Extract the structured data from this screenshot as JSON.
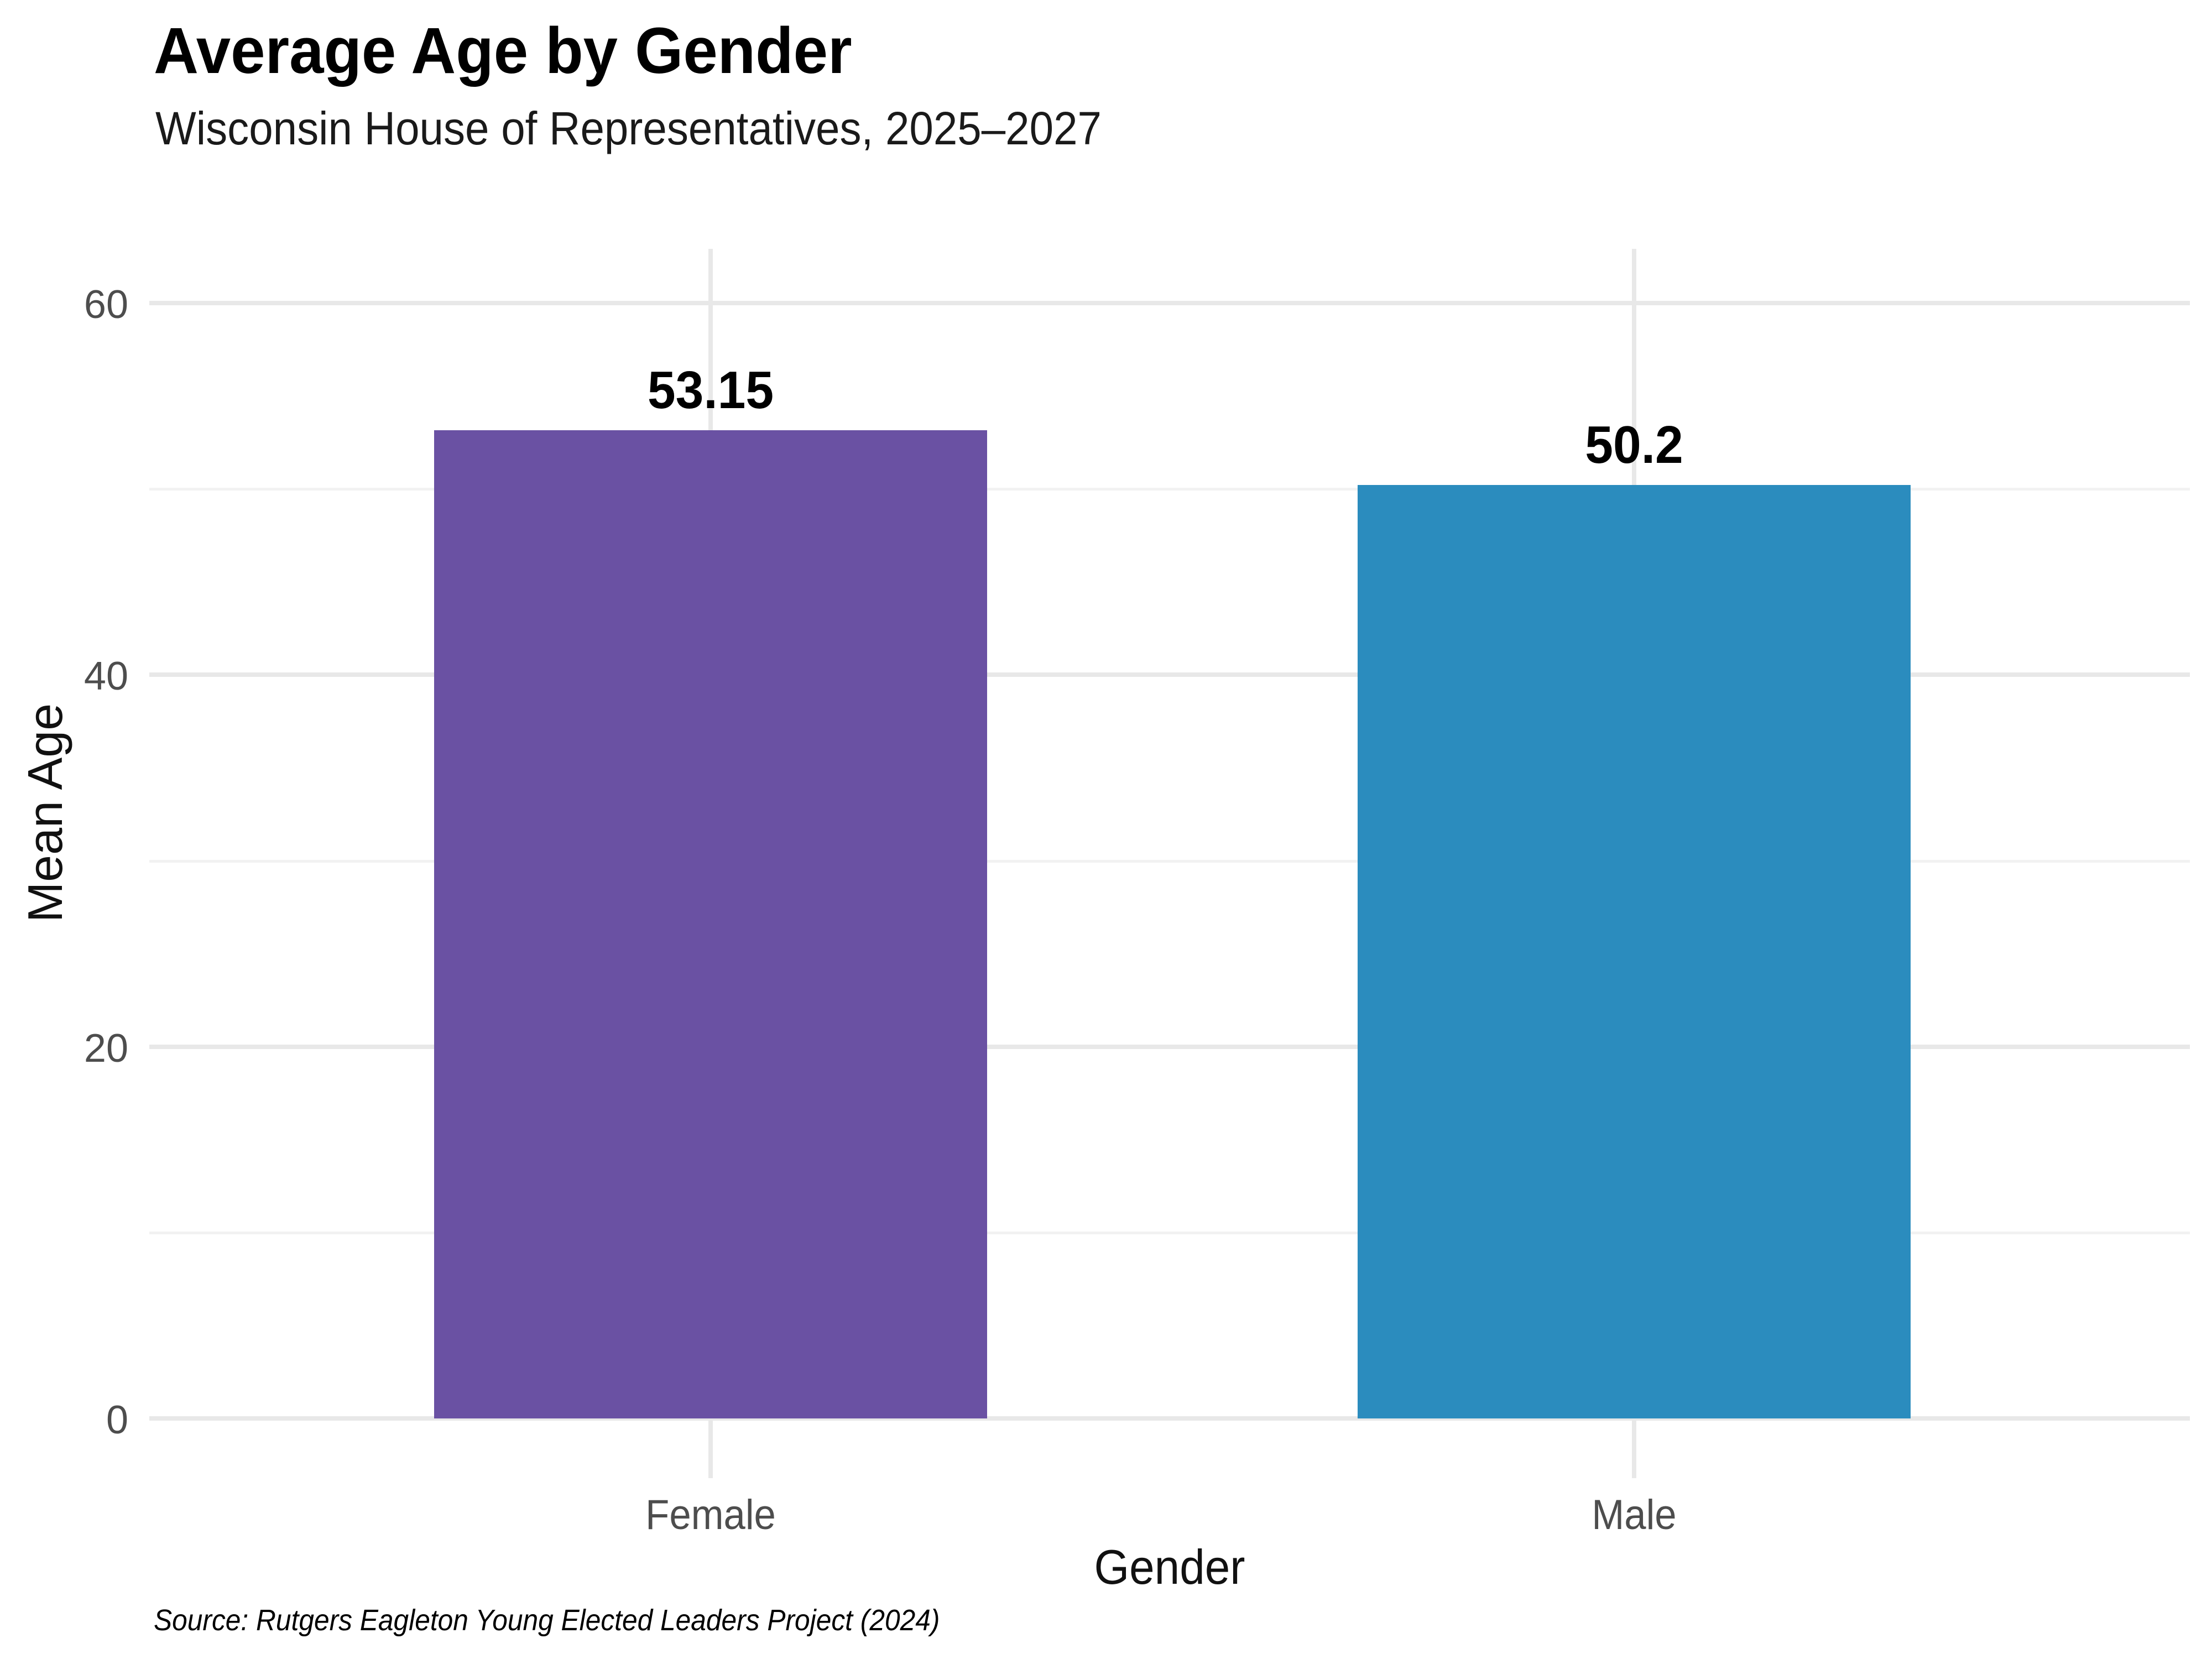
{
  "header": {
    "title": "Average Age by Gender",
    "subtitle": "Wisconsin House of Representatives, 2025–2027"
  },
  "chart_data": {
    "type": "bar",
    "categories": [
      "Female",
      "Male"
    ],
    "values": [
      53.15,
      50.2
    ],
    "value_labels": [
      "53.15",
      "50.2"
    ],
    "bar_colors": [
      "#6A51A3",
      "#2B8CBE"
    ],
    "title": "Average Age by Gender",
    "subtitle": "Wisconsin House of Representatives, 2025–2027",
    "xlabel": "Gender",
    "ylabel": "Mean Age",
    "ylim": [
      0,
      63
    ],
    "yticks_major": [
      0,
      20,
      40,
      60
    ],
    "yticks_minor": [
      10,
      30,
      50
    ],
    "grid": "horizontal major and minor gridlines, vertical major gridline at each category center",
    "legend_position": "none",
    "orientation": "vertical"
  },
  "footer": {
    "source": "Source: Rutgers Eagleton Young Elected Leaders Project (2024)"
  },
  "colors": {
    "background": "#FFFFFF",
    "grid_major": "#E8E8E8",
    "grid_minor": "#F2F2F2",
    "tick_label": "#4D4D4D",
    "text": "#000000",
    "bar_female": "#6A51A3",
    "bar_male": "#2B8CBE"
  }
}
